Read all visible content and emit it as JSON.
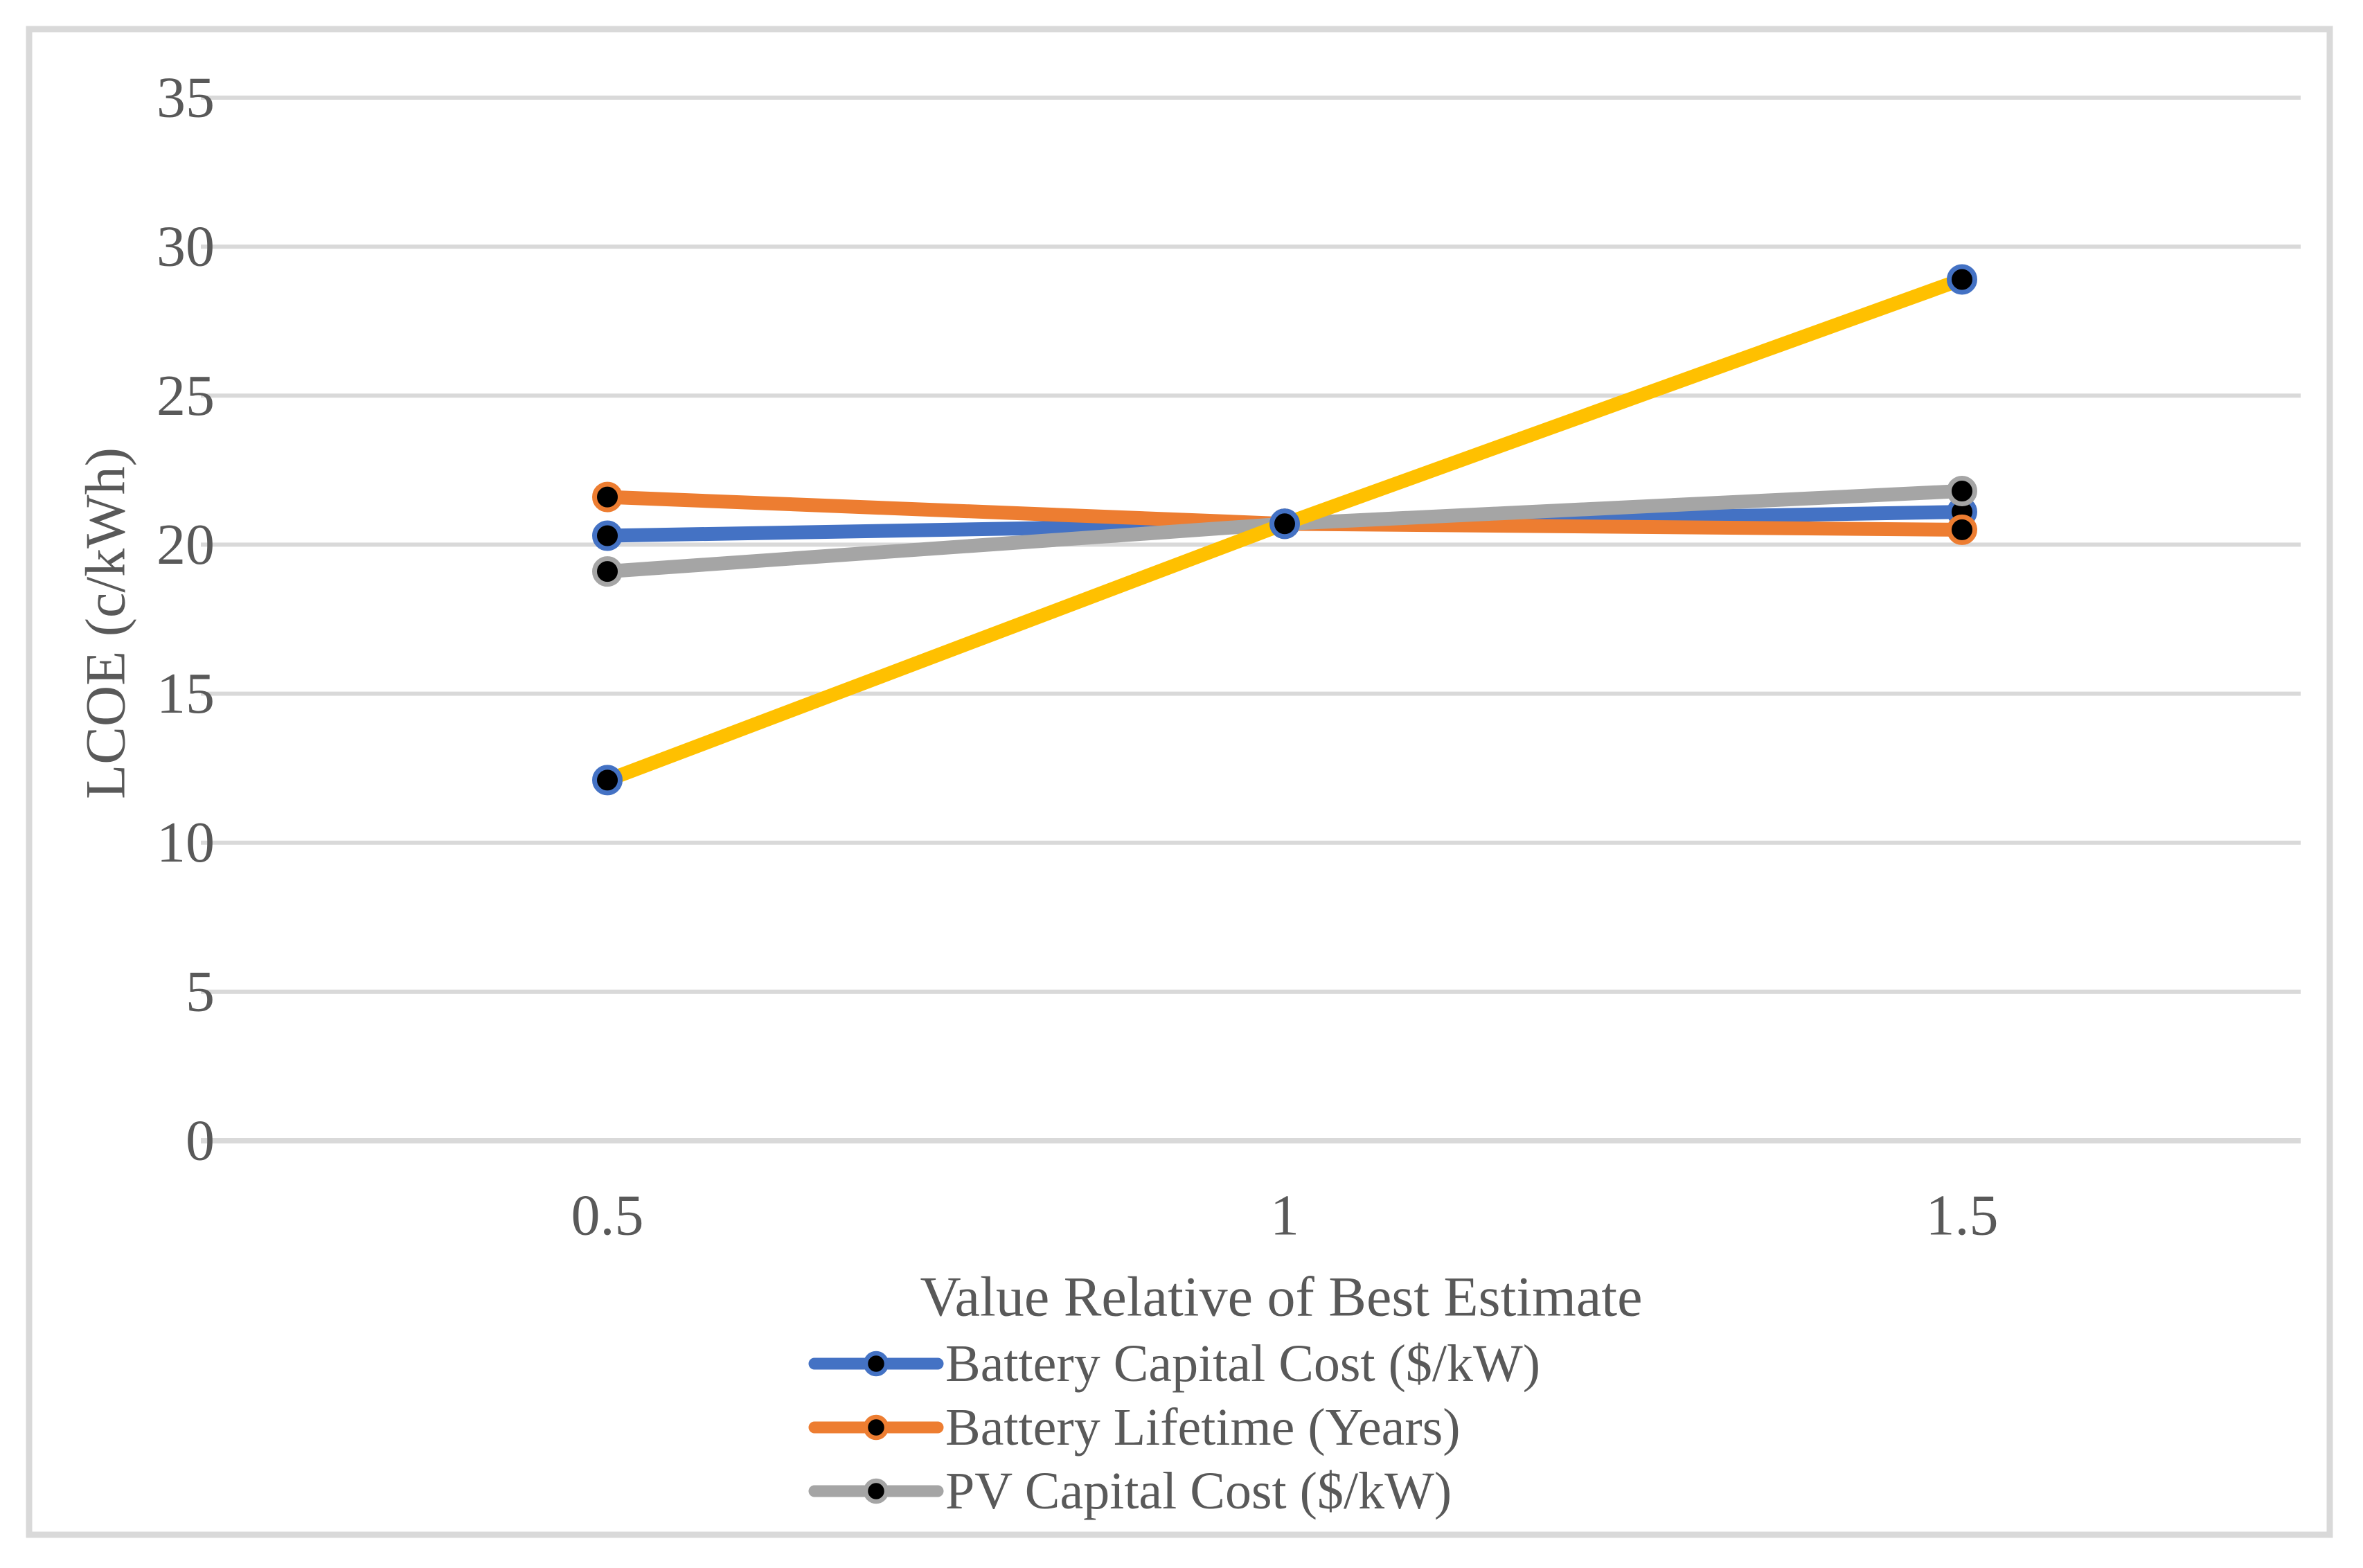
{
  "figure": {
    "background_color": "#FFFFFF",
    "border_color": "#D9D9D9",
    "text_color": "#595959",
    "gridline_color": "#D9D9D9",
    "marker_fill_color": "#000000"
  },
  "chart_data": {
    "type": "line",
    "x": [
      0.5,
      1,
      1.5
    ],
    "xtick_labels": [
      "0.5",
      "1",
      "1.5"
    ],
    "xlabel": "Value Relative of Best Estimate",
    "ylabel": "LCOE (c/kWh)",
    "ylim": [
      0,
      35
    ],
    "ytick_interval": 5,
    "ytick_labels": [
      "0",
      "5",
      "10",
      "15",
      "20",
      "25",
      "30",
      "35"
    ],
    "grid": "horizontal",
    "legend_position": "bottom-center",
    "series": [
      {
        "name": "Battery Capital Cost ($/kW)",
        "color": "#4472C4",
        "marker_ring_color": "#4472C4",
        "values": [
          20.3,
          20.7,
          21.1
        ],
        "in_legend": true
      },
      {
        "name": "Battery Lifetime (Years)",
        "color": "#ED7D31",
        "marker_ring_color": "#ED7D31",
        "values": [
          21.6,
          20.7,
          20.5
        ],
        "in_legend": true
      },
      {
        "name": "PV Capital Cost ($/kW)",
        "color": "#A5A5A5",
        "marker_ring_color": "#A5A5A5",
        "values": [
          19.1,
          20.7,
          21.8
        ],
        "in_legend": true
      },
      {
        "name": "",
        "color": "#FFC000",
        "marker_ring_color": "#4472C4",
        "values": [
          12.1,
          20.7,
          28.9
        ],
        "in_legend": false
      }
    ]
  }
}
